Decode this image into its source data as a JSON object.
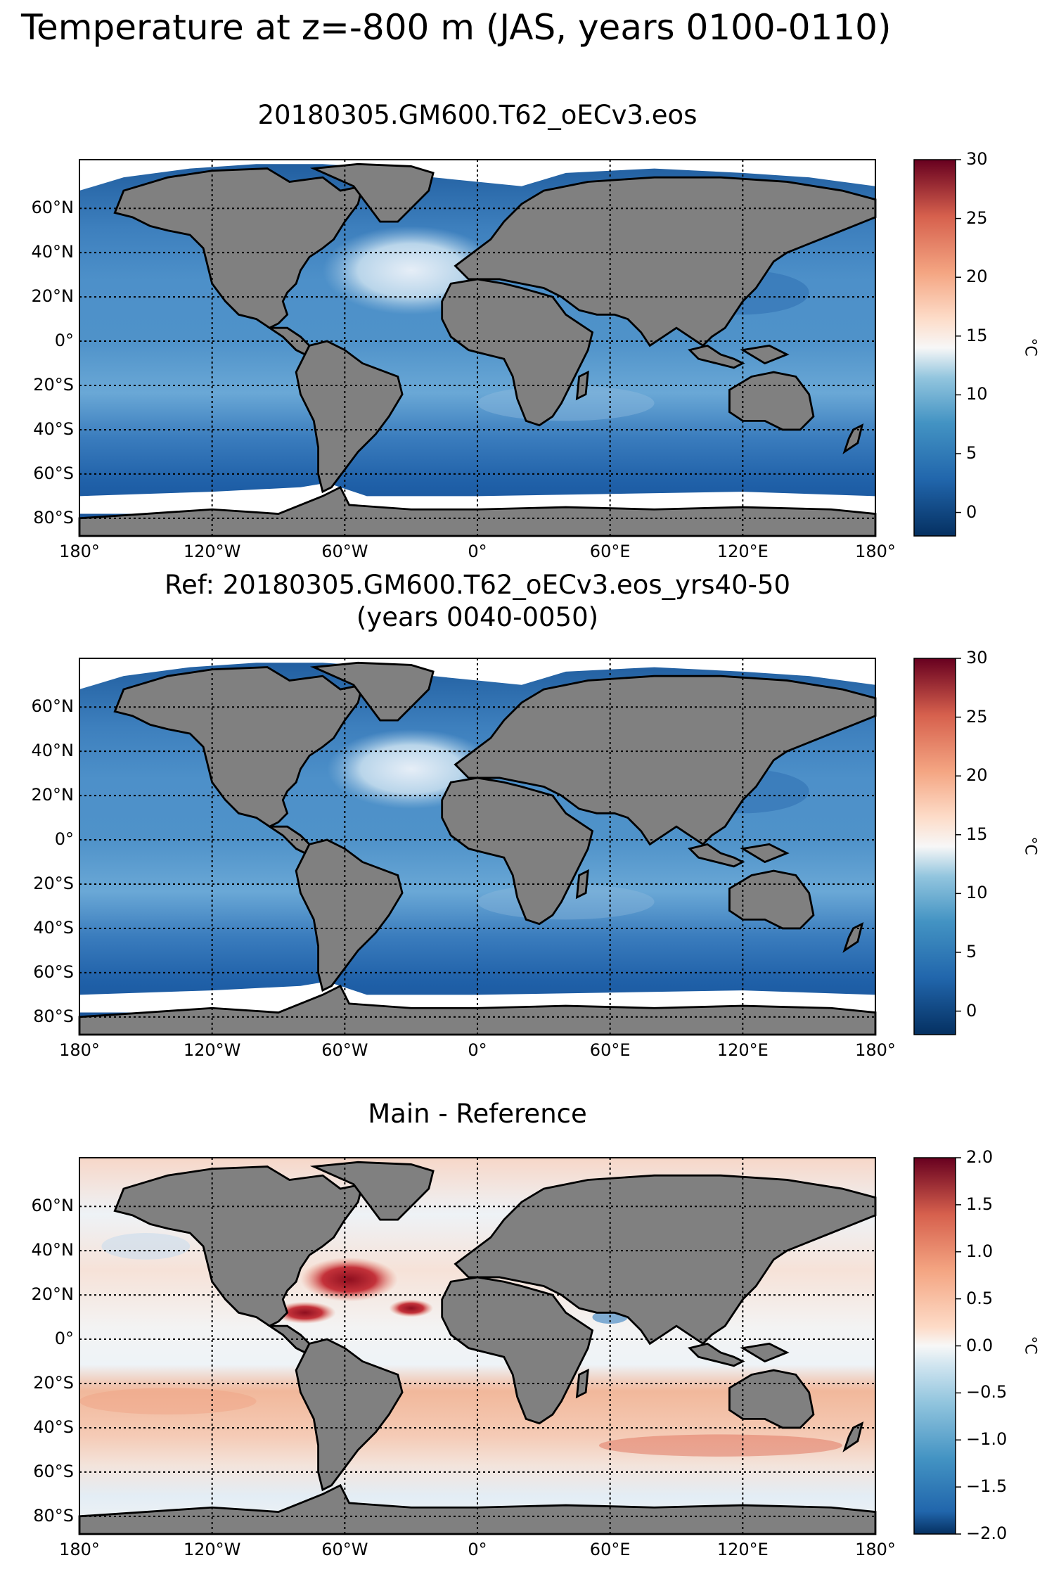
{
  "figure": {
    "title": "Temperature at z=-800 m (JAS, years 0100-0110)"
  },
  "colors": {
    "land": "#808080",
    "seaice": "#ffffff",
    "grid": "#000000"
  },
  "axes": {
    "lon_ticks": [
      "180°",
      "120°W",
      "60°W",
      "0°",
      "60°E",
      "120°E",
      "180°"
    ],
    "lat_ticks": [
      "60°N",
      "40°N",
      "20°N",
      "0°",
      "20°S",
      "40°S",
      "60°S",
      "80°S"
    ]
  },
  "panels": [
    {
      "title": "20180305.GM600.T62_oECv3.eos",
      "title2": "",
      "colorbar": {
        "min": -2,
        "max": 30,
        "ticks": [
          "30",
          "25",
          "20",
          "15",
          "10",
          "5",
          "0"
        ],
        "unit": "°C",
        "colormap": "RdBu_r"
      }
    },
    {
      "title": "Ref: 20180305.GM600.T62_oECv3.eos_yrs40-50",
      "title2": "(years 0040-0050)",
      "colorbar": {
        "min": -2,
        "max": 30,
        "ticks": [
          "30",
          "25",
          "20",
          "15",
          "10",
          "5",
          "0"
        ],
        "unit": "°C",
        "colormap": "RdBu_r"
      }
    },
    {
      "title": "Main - Reference",
      "title2": "",
      "colorbar": {
        "min": -2.0,
        "max": 2.0,
        "ticks": [
          "2.0",
          "1.5",
          "1.0",
          "0.5",
          "0.0",
          "−0.5",
          "−1.0",
          "−1.5",
          "−2.0"
        ],
        "unit": "°C",
        "colormap": "RdBu_r"
      }
    }
  ]
}
